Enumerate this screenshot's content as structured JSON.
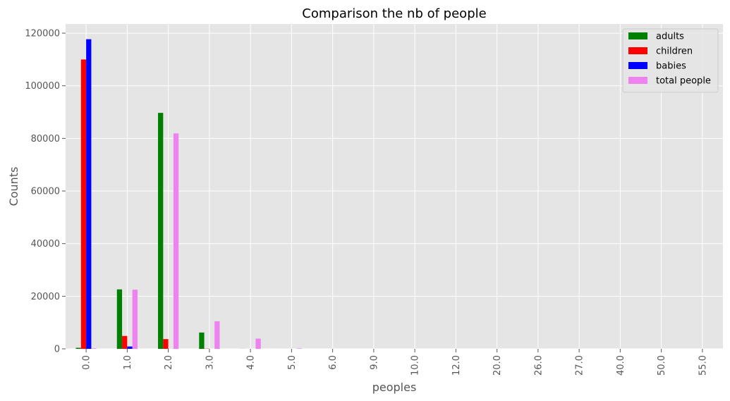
{
  "chart_data": {
    "type": "bar",
    "title": "Comparison the nb of people",
    "xlabel": "peoples",
    "ylabel": "Counts",
    "categories": [
      "0.0",
      "1.0",
      "2.0",
      "3.0",
      "4.0",
      "5.0",
      "6.0",
      "9.0",
      "10.0",
      "12.0",
      "20.0",
      "26.0",
      "27.0",
      "40.0",
      "50.0",
      "55.0"
    ],
    "ylim": [
      0,
      123500
    ],
    "yticks": [
      0,
      20000,
      40000,
      60000,
      80000,
      100000,
      120000
    ],
    "ytick_labels": [
      "0",
      "20000",
      "40000",
      "60000",
      "80000",
      "100000",
      "120000"
    ],
    "grid": true,
    "legend_position": "top-right",
    "series": [
      {
        "name": "adults",
        "color": "#008000",
        "values": [
          400,
          22600,
          89700,
          6200,
          20,
          5,
          1,
          0,
          0,
          0,
          0,
          0,
          0,
          0,
          0,
          0
        ]
      },
      {
        "name": "children",
        "color": "#ff0000",
        "values": [
          110000,
          4900,
          3700,
          70,
          0,
          0,
          0,
          0,
          1,
          0,
          0,
          0,
          0,
          0,
          0,
          0
        ]
      },
      {
        "name": "babies",
        "color": "#0000ff",
        "values": [
          117700,
          900,
          15,
          1,
          0,
          0,
          0,
          1,
          1,
          0,
          0,
          0,
          0,
          0,
          0,
          0
        ]
      },
      {
        "name": "total people",
        "color": "#ee82ee",
        "values": [
          180,
          22500,
          81900,
          10500,
          3900,
          140,
          2,
          0,
          0,
          1,
          2,
          5,
          2,
          1,
          1,
          1
        ]
      }
    ]
  }
}
